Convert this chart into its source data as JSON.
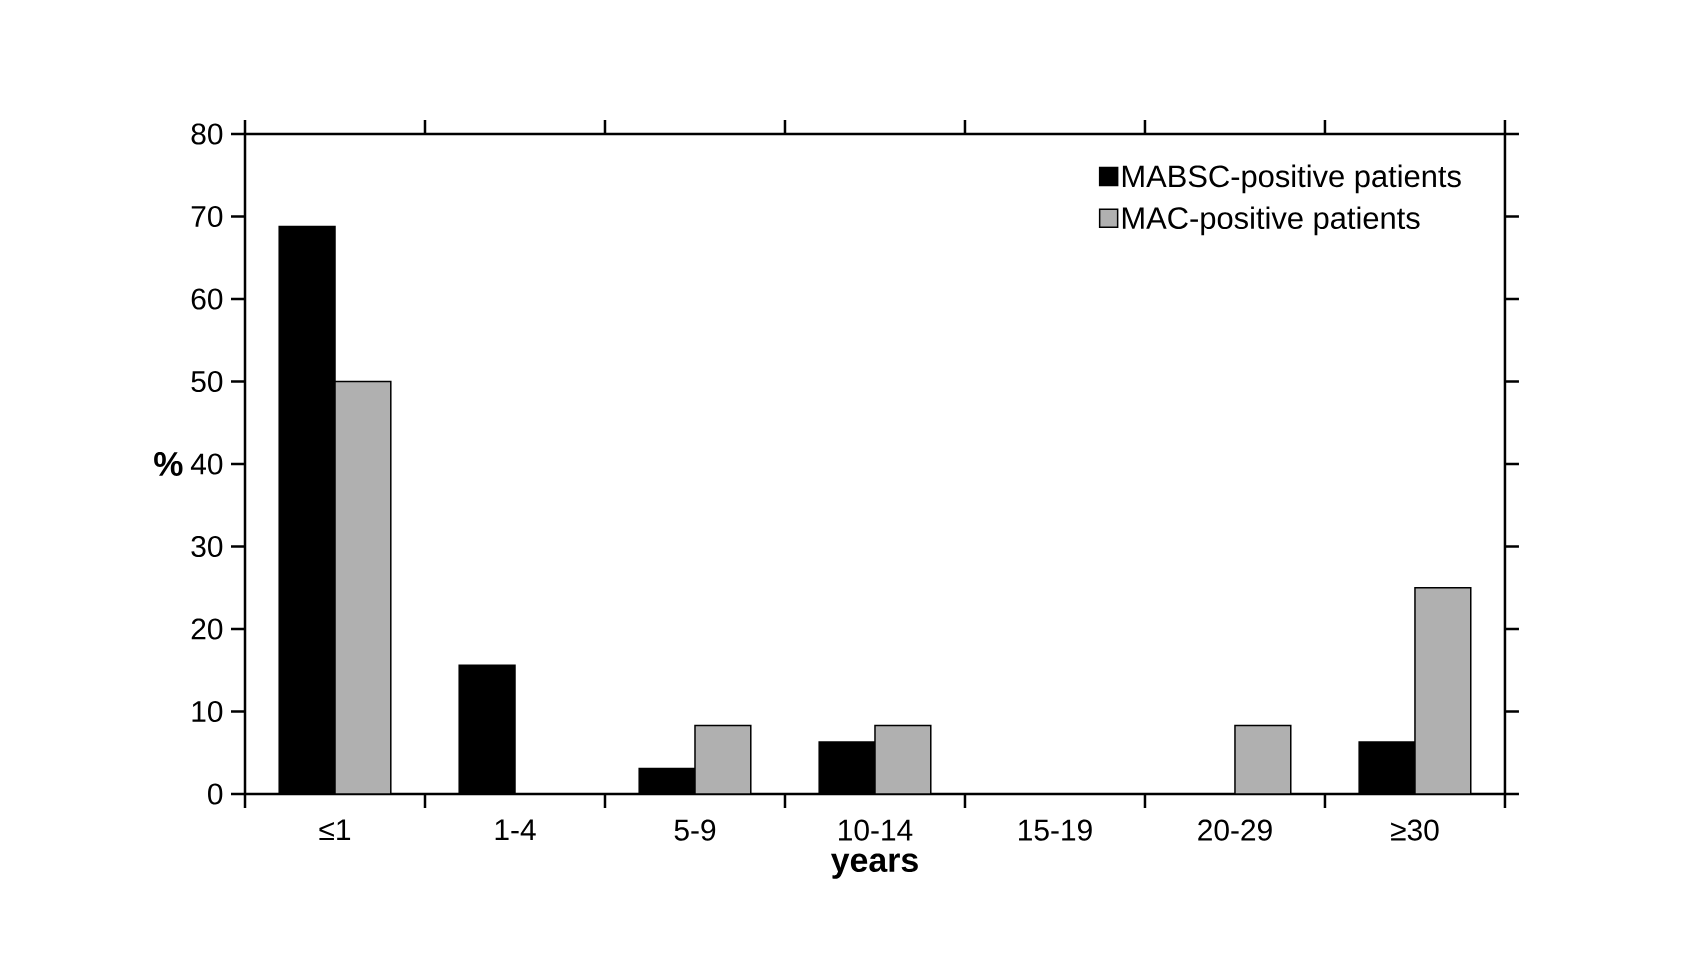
{
  "chart_data": {
    "type": "bar",
    "xlabel": "years",
    "ylabel": "%",
    "categories": [
      "≤1",
      "1-4",
      "5-9",
      "10-14",
      "15-19",
      "20-29",
      "≥30"
    ],
    "series": [
      {
        "name": "MABSC-positive patients",
        "color": "#000000",
        "values": [
          68.8,
          15.6,
          3.1,
          6.3,
          0,
          0,
          6.3
        ]
      },
      {
        "name": "MAC-positive patients",
        "color": "#b0b0b0",
        "values": [
          50,
          0,
          8.3,
          8.3,
          0,
          8.3,
          25
        ]
      }
    ],
    "ylim": [
      0,
      80
    ],
    "yticks": [
      0,
      10,
      20,
      30,
      40,
      50,
      60,
      70,
      80
    ],
    "grid": false,
    "legend": "top right"
  }
}
